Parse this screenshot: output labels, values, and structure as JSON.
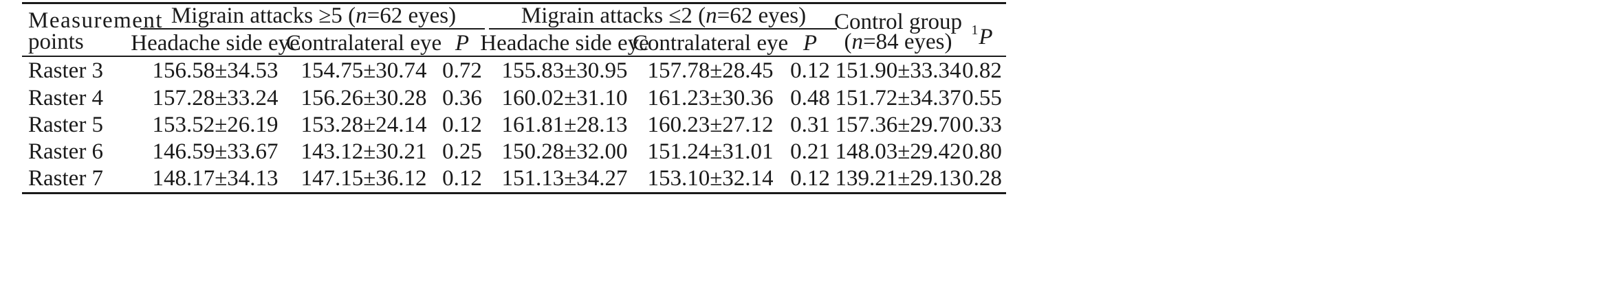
{
  "table": {
    "header": {
      "measurement_points": "Measurement",
      "measurement_points_line2": "points",
      "group1_prefix": "Migrain attacks ≥5 (",
      "group1_n": "n",
      "group1_suffix": "=62 eyes)",
      "group2_prefix": "Migrain attacks ≤2 (",
      "group2_n": "n",
      "group2_suffix": "=62 eyes)",
      "control_line1": "Control group",
      "control_line2_prefix": "(",
      "control_line2_n": "n",
      "control_line2_suffix": "=84 eyes)",
      "p_sup": "1",
      "p_letter": "P",
      "sub_headache": "Headache side eye",
      "sub_contralateral": "Contralateral eye",
      "sub_p": "P"
    },
    "rows": [
      {
        "point": "Raster 3",
        "g1_headache": "156.58±34.53",
        "g1_contra": "154.75±30.74",
        "g1_p": "0.72",
        "g2_headache": "155.83±30.95",
        "g2_contra": "157.78±28.45",
        "g2_p": "0.12",
        "control": "151.90±33.34",
        "p1": "0.82"
      },
      {
        "point": "Raster 4",
        "g1_headache": "157.28±33.24",
        "g1_contra": "156.26±30.28",
        "g1_p": "0.36",
        "g2_headache": "160.02±31.10",
        "g2_contra": "161.23±30.36",
        "g2_p": "0.48",
        "control": "151.72±34.37",
        "p1": "0.55"
      },
      {
        "point": "Raster 5",
        "g1_headache": "153.52±26.19",
        "g1_contra": "153.28±24.14",
        "g1_p": "0.12",
        "g2_headache": "161.81±28.13",
        "g2_contra": "160.23±27.12",
        "g2_p": "0.31",
        "control": "157.36±29.70",
        "p1": "0.33"
      },
      {
        "point": "Raster 6",
        "g1_headache": "146.59±33.67",
        "g1_contra": "143.12±30.21",
        "g1_p": "0.25",
        "g2_headache": "150.28±32.00",
        "g2_contra": "151.24±31.01",
        "g2_p": "0.21",
        "control": "148.03±29.42",
        "p1": "0.80"
      },
      {
        "point": "Raster 7",
        "g1_headache": "148.17±34.13",
        "g1_contra": "147.15±36.12",
        "g1_p": "0.12",
        "g2_headache": "151.13±34.27",
        "g2_contra": "153.10±32.14",
        "g2_p": "0.12",
        "control": "139.21±29.13",
        "p1": "0.28"
      }
    ]
  }
}
